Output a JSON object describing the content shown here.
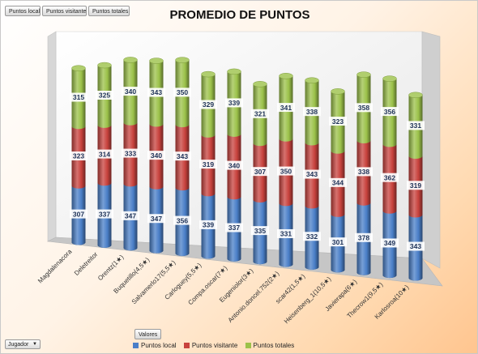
{
  "toolbar": {
    "buttons": [
      "Puntos local",
      "Puntos visitante",
      "Puntos totales"
    ]
  },
  "filter": {
    "field_label": "Jugador"
  },
  "values_field": "Valores",
  "chart_data": {
    "type": "bar",
    "stacked": true,
    "three_d": true,
    "title": "PROMEDIO DE PUNTOS",
    "categories": [
      "Magdalenacora",
      "Deletreitor",
      "Orentz(1★)",
      "Buquetillo(4,5★)",
      "Salvamerlo17(5,5★)",
      "Carloguey(5,5★)",
      "Compa.oscar(7★)",
      "Eugeniolor(3★)",
      "Antonio.doncel.752(2★)",
      "scar42(1,5★)",
      "Heisenberg_1(10,5★)",
      "Javierapa(6★)",
      "Thecrow1(9,5★)",
      "Karlosroa(10★)"
    ],
    "series": [
      {
        "name": "Puntos local",
        "color": "#4a7fc8",
        "values": [
          307,
          337,
          347,
          347,
          356,
          339,
          337,
          335,
          331,
          332,
          301,
          378,
          349,
          343
        ]
      },
      {
        "name": "Puntos visitante",
        "color": "#c8423d",
        "values": [
          323,
          314,
          333,
          340,
          343,
          319,
          340,
          307,
          350,
          343,
          344,
          338,
          362,
          319
        ]
      },
      {
        "name": "Puntos totales",
        "color": "#9cc24a",
        "values": [
          315,
          325,
          340,
          343,
          350,
          329,
          339,
          321,
          341,
          338,
          323,
          358,
          356,
          331
        ]
      }
    ],
    "legend_position": "bottom",
    "grid": false
  }
}
